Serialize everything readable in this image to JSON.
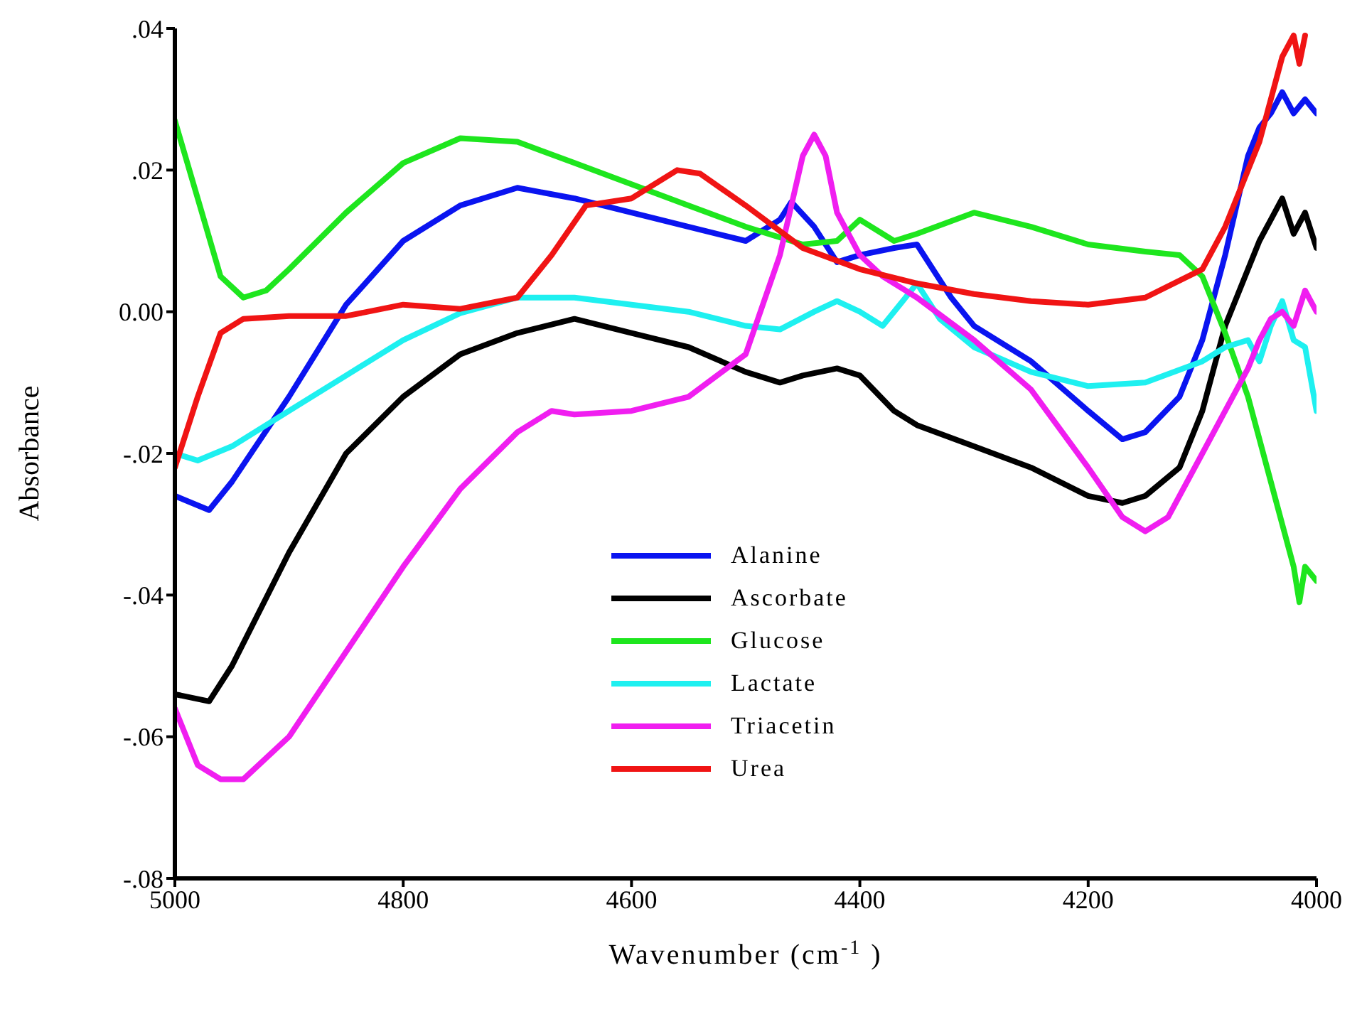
{
  "chart_data": {
    "type": "line",
    "xlabel": "Wavenumber (cm$^{-1}$)",
    "ylabel": "Absorbance",
    "xlim": [
      5000,
      4000
    ],
    "xticks": [
      5000,
      4800,
      4600,
      4400,
      4200,
      4000
    ],
    "ylim": [
      -0.08,
      0.04
    ],
    "yticks": [
      {
        "value": -0.08,
        "label": "-.08"
      },
      {
        "value": -0.06,
        "label": "-.06"
      },
      {
        "value": -0.04,
        "label": "-.04"
      },
      {
        "value": -0.02,
        "label": "-.02"
      },
      {
        "value": 0,
        "label": "0.00"
      },
      {
        "value": 0.02,
        "label": ".02"
      },
      {
        "value": 0.04,
        "label": ".04"
      }
    ],
    "grid": false,
    "legend": "bottom",
    "marker": "none",
    "line_style": "solid",
    "series": [
      {
        "name": "Alanine",
        "color": "#0a14f0",
        "x": [
          5000,
          4970,
          4950,
          4900,
          4850,
          4800,
          4750,
          4700,
          4650,
          4600,
          4550,
          4500,
          4470,
          4460,
          4440,
          4420,
          4400,
          4370,
          4350,
          4320,
          4300,
          4250,
          4200,
          4170,
          4150,
          4120,
          4100,
          4080,
          4060,
          4050,
          4040,
          4030,
          4020,
          4010,
          4000
        ],
        "values": [
          -0.026,
          -0.028,
          -0.024,
          -0.012,
          0.001,
          0.01,
          0.015,
          0.0175,
          0.016,
          0.014,
          0.012,
          0.01,
          0.013,
          0.0155,
          0.012,
          0.007,
          0.008,
          0.009,
          0.0095,
          0.002,
          -0.002,
          -0.007,
          -0.014,
          -0.018,
          -0.017,
          -0.012,
          -0.004,
          0.008,
          0.022,
          0.026,
          0.028,
          0.031,
          0.028,
          0.03,
          0.028
        ]
      },
      {
        "name": "Ascorbate",
        "color": "#000000",
        "x": [
          5000,
          4970,
          4950,
          4900,
          4850,
          4800,
          4750,
          4700,
          4650,
          4600,
          4550,
          4500,
          4470,
          4450,
          4420,
          4400,
          4370,
          4350,
          4300,
          4250,
          4200,
          4170,
          4150,
          4120,
          4100,
          4080,
          4060,
          4050,
          4040,
          4030,
          4020,
          4010,
          4000
        ],
        "values": [
          -0.054,
          -0.055,
          -0.05,
          -0.034,
          -0.02,
          -0.012,
          -0.006,
          -0.003,
          -0.001,
          -0.003,
          -0.005,
          -0.0085,
          -0.01,
          -0.009,
          -0.008,
          -0.009,
          -0.014,
          -0.016,
          -0.019,
          -0.022,
          -0.026,
          -0.027,
          -0.026,
          -0.022,
          -0.014,
          -0.002,
          0.006,
          0.01,
          0.013,
          0.016,
          0.011,
          0.014,
          0.009
        ]
      },
      {
        "name": "Glucose",
        "color": "#1ee61e",
        "x": [
          5000,
          4980,
          4960,
          4940,
          4920,
          4900,
          4850,
          4800,
          4750,
          4700,
          4650,
          4600,
          4550,
          4500,
          4450,
          4420,
          4400,
          4370,
          4350,
          4300,
          4250,
          4200,
          4150,
          4120,
          4100,
          4080,
          4060,
          4050,
          4040,
          4030,
          4020,
          4015,
          4010,
          4000
        ],
        "values": [
          0.027,
          0.016,
          0.005,
          0.002,
          0.003,
          0.006,
          0.014,
          0.021,
          0.0245,
          0.024,
          0.021,
          0.018,
          0.015,
          0.012,
          0.0095,
          0.01,
          0.013,
          0.01,
          0.011,
          0.014,
          0.012,
          0.0095,
          0.0085,
          0.008,
          0.005,
          -0.003,
          -0.012,
          -0.018,
          -0.024,
          -0.03,
          -0.036,
          -0.041,
          -0.036,
          -0.038
        ]
      },
      {
        "name": "Lactate",
        "color": "#1ef0f0",
        "x": [
          5000,
          4980,
          4950,
          4900,
          4850,
          4800,
          4750,
          4700,
          4650,
          4600,
          4550,
          4500,
          4470,
          4440,
          4420,
          4400,
          4380,
          4360,
          4350,
          4330,
          4300,
          4250,
          4200,
          4150,
          4100,
          4080,
          4060,
          4050,
          4040,
          4030,
          4020,
          4010,
          4000
        ],
        "values": [
          -0.02,
          -0.021,
          -0.019,
          -0.014,
          -0.009,
          -0.004,
          -0.0002,
          0.002,
          0.002,
          0.001,
          0,
          -0.002,
          -0.0025,
          0,
          0.0015,
          0,
          -0.002,
          0.002,
          0.004,
          -0.001,
          -0.005,
          -0.0085,
          -0.0105,
          -0.01,
          -0.007,
          -0.005,
          -0.004,
          -0.007,
          -0.002,
          0.0015,
          -0.004,
          -0.005,
          -0.014
        ]
      },
      {
        "name": "Triacetin",
        "color": "#f01ef0",
        "x": [
          5000,
          4980,
          4960,
          4940,
          4900,
          4850,
          4800,
          4750,
          4700,
          4670,
          4650,
          4600,
          4550,
          4500,
          4470,
          4450,
          4440,
          4430,
          4420,
          4400,
          4380,
          4350,
          4300,
          4250,
          4200,
          4170,
          4150,
          4130,
          4100,
          4080,
          4060,
          4050,
          4040,
          4030,
          4020,
          4010,
          4000
        ],
        "values": [
          -0.056,
          -0.064,
          -0.066,
          -0.066,
          -0.06,
          -0.048,
          -0.036,
          -0.025,
          -0.017,
          -0.014,
          -0.0145,
          -0.014,
          -0.012,
          -0.006,
          0.008,
          0.022,
          0.025,
          0.022,
          0.014,
          0.008,
          0.005,
          0.002,
          -0.004,
          -0.011,
          -0.022,
          -0.029,
          -0.031,
          -0.029,
          -0.02,
          -0.014,
          -0.008,
          -0.004,
          -0.001,
          0,
          -0.002,
          0.003,
          0
        ]
      },
      {
        "name": "Urea",
        "color": "#f01414",
        "x": [
          5000,
          4980,
          4960,
          4940,
          4900,
          4850,
          4800,
          4750,
          4700,
          4670,
          4640,
          4600,
          4560,
          4540,
          4500,
          4450,
          4400,
          4350,
          4300,
          4250,
          4200,
          4150,
          4100,
          4080,
          4060,
          4050,
          4040,
          4030,
          4020,
          4015,
          4010
        ],
        "values": [
          -0.022,
          -0.012,
          -0.003,
          -0.001,
          -0.0006,
          -0.0006,
          0.001,
          0.0004,
          0.002,
          0.008,
          0.015,
          0.016,
          0.02,
          0.0195,
          0.015,
          0.009,
          0.006,
          0.004,
          0.0025,
          0.0015,
          0.001,
          0.002,
          0.006,
          0.012,
          0.02,
          0.024,
          0.03,
          0.036,
          0.039,
          0.035,
          0.039
        ]
      }
    ]
  }
}
